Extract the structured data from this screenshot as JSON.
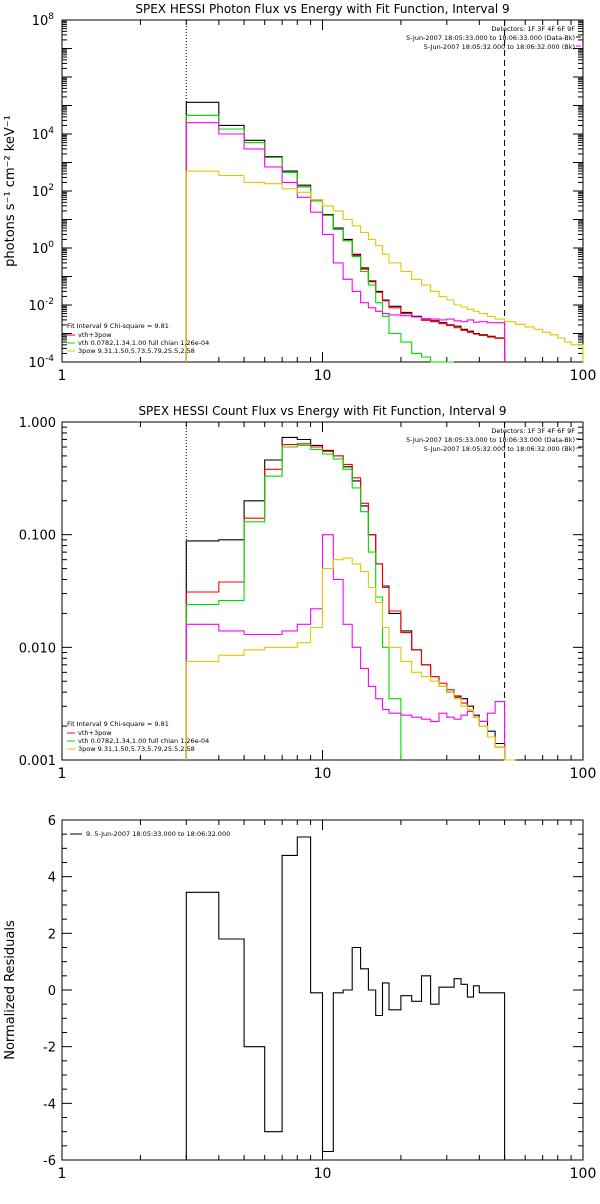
{
  "chart_data": [
    {
      "type": "line",
      "title": "SPEX HESSI Photon Flux vs Energy with Fit Function, Interval 9",
      "xlabel": "",
      "ylabel": "photons s⁻¹ cm⁻² keV⁻¹",
      "xscale": "log",
      "yscale": "log",
      "xlim": [
        1,
        100
      ],
      "ylim": [
        0.0001,
        100000000
      ],
      "x_ticks": [
        {
          "v": 1,
          "label": "1"
        },
        {
          "v": 10,
          "label": "10"
        },
        {
          "v": 100,
          "label": "100"
        }
      ],
      "y_ticks": [
        {
          "v": 0.0001,
          "base": "10",
          "exp": "-4"
        },
        {
          "v": 0.01,
          "base": "10",
          "exp": "-2"
        },
        {
          "v": 1,
          "base": "10",
          "exp": "0"
        },
        {
          "v": 100,
          "base": "10",
          "exp": "2"
        },
        {
          "v": 10000,
          "base": "10",
          "exp": "4"
        },
        {
          "v": 100000000,
          "base": "10",
          "exp": "8"
        }
      ],
      "grid": false,
      "vlines": [
        {
          "x": 3.0,
          "style": "dotted"
        },
        {
          "x": 50.0,
          "style": "dashed"
        }
      ],
      "legend_top": [
        "Detectors: 1F 3F 4F 6F 9F",
        "5-Jun-2007 18:05:33.000 to 18:06:33.000 (Data-Bk)",
        "5-Jun-2007 18:05:32.000 to 18:06:32.000 (Bk)"
      ],
      "legend_bottom_title": "Fit Interval 9   Chi-square = 9.81",
      "legend_bottom": [
        "vth+3pow",
        "vth 0.0782,1.34,1.00  full chian 1.26e-04",
        "3pow 9.31,1.50,5.73,5.79,25.5,2.58"
      ],
      "series": [
        {
          "color": "#000000",
          "edges": [
            3,
            4,
            5,
            6,
            7,
            8,
            9,
            10,
            11,
            12,
            13,
            14,
            15,
            16,
            17,
            18,
            20,
            22,
            24,
            26,
            28,
            30,
            32,
            34,
            36,
            38,
            40,
            43,
            46,
            50
          ],
          "values": [
            130000,
            20000,
            6000,
            1600,
            500,
            160,
            50,
            15,
            5,
            2,
            0.6,
            0.2,
            0.07,
            0.03,
            0.015,
            0.009,
            0.0055,
            0.004,
            0.003,
            0.0028,
            0.0024,
            0.002,
            0.0018,
            0.0014,
            0.0012,
            0.001,
            0.0009,
            0.0008,
            0.0007
          ]
        },
        {
          "color": "#ff0000",
          "edges": [
            3,
            4,
            5,
            6,
            7,
            8,
            9,
            10,
            11,
            12,
            13,
            14,
            15,
            16,
            17,
            18,
            20,
            22,
            24,
            26,
            28,
            30,
            32,
            34,
            36,
            38,
            40,
            43,
            46,
            50
          ],
          "values": [
            45000,
            15000,
            5000,
            1500,
            450,
            140,
            45,
            14,
            4.5,
            1.8,
            0.55,
            0.18,
            0.065,
            0.028,
            0.014,
            0.008,
            0.005,
            0.0038,
            0.0029,
            0.0026,
            0.0022,
            0.0019,
            0.0016,
            0.0013,
            0.0011,
            0.00095,
            0.00085,
            0.00075,
            0.00068
          ]
        },
        {
          "color": "#00dd00",
          "edges": [
            3,
            4,
            5,
            6,
            7,
            8,
            9,
            10,
            11,
            12,
            13,
            14,
            15,
            16,
            17,
            18,
            20,
            22,
            24,
            26,
            28,
            30,
            32
          ],
          "values": [
            45000,
            15000,
            5000,
            1500,
            450,
            140,
            45,
            14,
            4.5,
            1.8,
            0.5,
            0.15,
            0.05,
            0.012,
            0.004,
            0.001,
            0.0005,
            0.0002,
            0.00015,
            0.0001,
            0.0001,
            0.0001
          ]
        },
        {
          "color": "#ff00ff",
          "edges": [
            3,
            4,
            5,
            6,
            7,
            8,
            9,
            10,
            11,
            12,
            13,
            14,
            15,
            16,
            17,
            18,
            20,
            22,
            24,
            26,
            28,
            30,
            32,
            34,
            36,
            38,
            40,
            43,
            46,
            50
          ],
          "values": [
            25000,
            10000,
            3000,
            700,
            200,
            60,
            18,
            3,
            0.3,
            0.08,
            0.03,
            0.012,
            0.008,
            0.006,
            0.005,
            0.0045,
            0.0042,
            0.0038,
            0.0033,
            0.0032,
            0.003,
            0.0032,
            0.0028,
            0.0026,
            0.003,
            0.0025,
            0.0026,
            0.0024,
            0.0024
          ]
        },
        {
          "color": "#ddcc00",
          "edges": [
            3,
            4,
            5,
            6,
            7,
            8,
            9,
            10,
            11,
            12,
            13,
            14,
            15,
            16,
            17,
            18,
            20,
            22,
            24,
            26,
            28,
            30,
            32,
            34,
            36,
            38,
            40,
            43,
            46,
            50,
            55,
            60,
            65,
            70,
            75,
            80,
            85,
            90,
            100
          ],
          "values": [
            500,
            350,
            200,
            180,
            120,
            90,
            50,
            30,
            20,
            10,
            6,
            3.5,
            2,
            1.2,
            0.6,
            0.3,
            0.15,
            0.08,
            0.05,
            0.03,
            0.02,
            0.015,
            0.01,
            0.0085,
            0.007,
            0.006,
            0.005,
            0.004,
            0.0032,
            0.0026,
            0.0021,
            0.0017,
            0.0014,
            0.0011,
            0.0009,
            0.0007,
            0.0005,
            0.0004
          ]
        }
      ]
    },
    {
      "type": "line",
      "title": "SPEX HESSI Count Flux vs Energy with Fit Function, Interval 9",
      "xlabel": "",
      "ylabel": "",
      "xscale": "log",
      "yscale": "log",
      "xlim": [
        1,
        100
      ],
      "ylim": [
        0.001,
        1.0
      ],
      "x_ticks": [
        {
          "v": 1,
          "label": "1"
        },
        {
          "v": 10,
          "label": "10"
        },
        {
          "v": 100,
          "label": "100"
        }
      ],
      "y_ticks": [
        {
          "v": 0.001,
          "label": "0.001"
        },
        {
          "v": 0.01,
          "label": "0.010"
        },
        {
          "v": 0.1,
          "label": "0.100"
        },
        {
          "v": 1.0,
          "label": "1.000"
        }
      ],
      "grid": false,
      "vlines": [
        {
          "x": 3.0,
          "style": "dotted"
        },
        {
          "x": 50.0,
          "style": "dashed"
        }
      ],
      "legend_top": [
        "Detectors: 1F 3F 4F 6F 9F",
        "5-Jun-2007 18:05:33.000 to 18:06:33.000 (Data-Bk)",
        "5-Jun-2007 18:05:32.000 to 18:06:32.000 (Bk)"
      ],
      "legend_bottom_title": "Fit Interval 9   Chi-square = 9.81",
      "legend_bottom": [
        "vth+3pow",
        "vth 0.0782,1.34,1.00  full chian 1.26e-04",
        "3pow 9.31,1.50,5.73,5.79,25.5,2.58"
      ],
      "series": [
        {
          "color": "#000000",
          "edges": [
            3,
            4,
            5,
            6,
            7,
            8,
            9,
            10,
            11,
            12,
            13,
            14,
            15,
            16,
            17,
            18,
            20,
            22,
            24,
            26,
            28,
            30,
            32,
            34,
            36,
            38,
            40,
            43,
            46,
            50
          ],
          "values": [
            0.088,
            0.09,
            0.2,
            0.46,
            0.73,
            0.7,
            0.62,
            0.56,
            0.5,
            0.4,
            0.3,
            0.18,
            0.1,
            0.055,
            0.035,
            0.02,
            0.014,
            0.0095,
            0.007,
            0.0055,
            0.0045,
            0.004,
            0.0037,
            0.0035,
            0.003,
            0.0025,
            0.0022,
            0.0018,
            0.0014
          ]
        },
        {
          "color": "#ff0000",
          "edges": [
            3,
            4,
            5,
            6,
            7,
            8,
            9,
            10,
            11,
            12,
            13,
            14,
            15,
            16,
            17,
            18,
            20,
            22,
            24,
            26,
            28,
            30,
            32,
            34,
            36,
            38,
            40,
            43,
            46,
            50
          ],
          "values": [
            0.031,
            0.038,
            0.14,
            0.38,
            0.63,
            0.64,
            0.6,
            0.55,
            0.5,
            0.42,
            0.32,
            0.19,
            0.1,
            0.055,
            0.034,
            0.021,
            0.0135,
            0.0095,
            0.007,
            0.0055,
            0.0048,
            0.0042,
            0.0036,
            0.0032,
            0.0028,
            0.0024,
            0.002,
            0.0016,
            0.0013
          ]
        },
        {
          "color": "#00dd00",
          "edges": [
            3,
            4,
            5,
            6,
            7,
            8,
            9,
            10,
            11,
            12,
            13,
            14,
            15,
            16,
            17,
            18,
            20
          ],
          "values": [
            0.024,
            0.026,
            0.13,
            0.33,
            0.6,
            0.62,
            0.57,
            0.52,
            0.47,
            0.38,
            0.26,
            0.16,
            0.07,
            0.028,
            0.01,
            0.0035
          ]
        },
        {
          "color": "#ff00ff",
          "edges": [
            3,
            4,
            5,
            6,
            7,
            8,
            9,
            10,
            11,
            12,
            13,
            14,
            15,
            16,
            17,
            18,
            20,
            22,
            24,
            26,
            28,
            30,
            32,
            34,
            36,
            38,
            40,
            43,
            46,
            50
          ],
          "values": [
            0.016,
            0.014,
            0.013,
            0.013,
            0.014,
            0.016,
            0.022,
            0.1,
            0.04,
            0.016,
            0.01,
            0.0065,
            0.0045,
            0.0035,
            0.0028,
            0.0026,
            0.0025,
            0.0024,
            0.0023,
            0.0022,
            0.0026,
            0.0024,
            0.0023,
            0.0025,
            0.0027,
            0.0024,
            0.0022,
            0.0026,
            0.0033
          ]
        },
        {
          "color": "#ddcc00",
          "edges": [
            3,
            4,
            5,
            6,
            7,
            8,
            9,
            10,
            11,
            12,
            13,
            14,
            15,
            16,
            17,
            18,
            20,
            22,
            24,
            26,
            28,
            30,
            32,
            34,
            36,
            38,
            40,
            43,
            46,
            50,
            55
          ],
          "values": [
            0.0075,
            0.0085,
            0.0095,
            0.01,
            0.01,
            0.011,
            0.015,
            0.05,
            0.06,
            0.062,
            0.055,
            0.047,
            0.034,
            0.025,
            0.015,
            0.01,
            0.0075,
            0.006,
            0.0055,
            0.005,
            0.0045,
            0.004,
            0.0035,
            0.003,
            0.0028,
            0.0024,
            0.002,
            0.0016,
            0.0013,
            0.001
          ]
        }
      ]
    },
    {
      "type": "line",
      "title": "",
      "xlabel": "",
      "ylabel": "Normalized Residuals",
      "xscale": "log",
      "yscale": "linear",
      "xlim": [
        1,
        100
      ],
      "ylim": [
        -6,
        6
      ],
      "x_ticks": [
        {
          "v": 1,
          "label": "1"
        },
        {
          "v": 10,
          "label": "10"
        },
        {
          "v": 100,
          "label": "100"
        }
      ],
      "y_ticks": [
        {
          "v": -6,
          "label": "-6"
        },
        {
          "v": -4,
          "label": "-4"
        },
        {
          "v": -2,
          "label": "-2"
        },
        {
          "v": 0,
          "label": "0"
        },
        {
          "v": 2,
          "label": "2"
        },
        {
          "v": 4,
          "label": "4"
        },
        {
          "v": 6,
          "label": "6"
        }
      ],
      "grid": false,
      "legend_top_left": "9.  5-Jun-2007 18:05:33.000 to 18:06:32.000",
      "series": [
        {
          "color": "#000000",
          "edges": [
            3,
            4,
            5,
            6,
            7,
            8,
            9,
            10,
            11,
            12,
            13,
            14,
            15,
            16,
            17,
            18,
            20,
            22,
            24,
            26,
            28,
            30,
            32,
            34,
            36,
            38,
            40,
            43,
            46,
            50
          ],
          "values": [
            3.45,
            1.8,
            -2.0,
            -5.0,
            4.75,
            5.4,
            -0.1,
            -5.7,
            -0.1,
            0.0,
            1.5,
            0.75,
            0.0,
            -0.9,
            0.25,
            -0.7,
            -0.2,
            -0.4,
            0.5,
            -0.5,
            0.1,
            0.1,
            0.4,
            0.2,
            -0.25,
            0.15,
            -0.1,
            -0.1,
            -0.1
          ]
        }
      ]
    }
  ]
}
